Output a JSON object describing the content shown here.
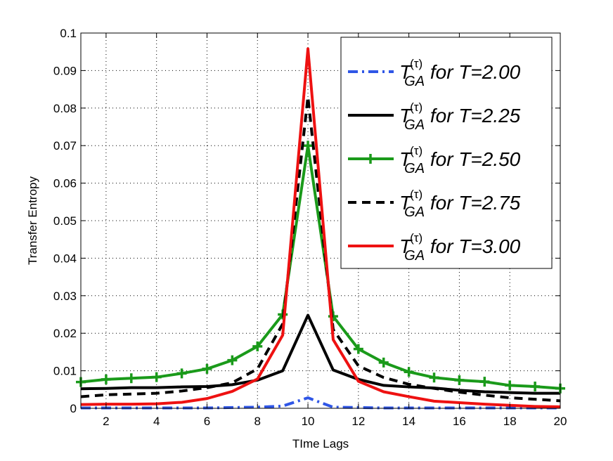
{
  "chart_data": {
    "type": "line",
    "title": "",
    "xlabel": "TIme Lags",
    "ylabel": "Transfer Entropy",
    "xlim": [
      1,
      20
    ],
    "ylim": [
      0,
      0.1
    ],
    "grid": true,
    "legend_position": "top-right",
    "x": [
      1,
      2,
      3,
      4,
      5,
      6,
      7,
      8,
      9,
      10,
      11,
      12,
      13,
      14,
      15,
      16,
      17,
      18,
      19,
      20
    ],
    "xticks": [
      "2",
      "4",
      "6",
      "8",
      "10",
      "12",
      "14",
      "16",
      "18",
      "20"
    ],
    "yticks": [
      "0",
      "0.01",
      "0.02",
      "0.03",
      "0.04",
      "0.05",
      "0.06",
      "0.07",
      "0.08",
      "0.09",
      "0.1"
    ],
    "series": [
      {
        "name": "T_GA^(τ) for T=2.00",
        "legend_main": "T",
        "legend_sup": "(τ)",
        "legend_sub": "GA",
        "legend_tail": " for T=2.00",
        "color": "#2f56e6",
        "style": "dashdot",
        "marker": "none",
        "values": [
          0.0001,
          0.0001,
          0.0001,
          0.0001,
          0.0001,
          0.0001,
          0.0002,
          0.0003,
          0.0006,
          0.0028,
          0.0003,
          0.0002,
          0.0001,
          0.0001,
          0.0001,
          0.0001,
          0.0001,
          0.0001,
          0.0001,
          0.0001
        ]
      },
      {
        "name": "T_GA^(τ) for T=2.25",
        "legend_main": "T",
        "legend_sup": "(τ)",
        "legend_sub": "GA",
        "legend_tail": " for T=2.25",
        "color": "#000000",
        "style": "solid",
        "marker": "none",
        "values": [
          0.0052,
          0.0053,
          0.0055,
          0.0055,
          0.0057,
          0.0058,
          0.0063,
          0.0075,
          0.01,
          0.0248,
          0.0102,
          0.0077,
          0.0061,
          0.0057,
          0.0054,
          0.0048,
          0.0044,
          0.0042,
          0.004,
          0.004
        ]
      },
      {
        "name": "T_GA^(τ) for T=2.50",
        "legend_main": "T",
        "legend_sup": "(τ)",
        "legend_sub": "GA",
        "legend_tail": " for T=2.50",
        "color": "#1a9a1a",
        "style": "solid",
        "marker": "plus",
        "values": [
          0.007,
          0.0077,
          0.008,
          0.0083,
          0.0093,
          0.0105,
          0.0128,
          0.0165,
          0.025,
          0.07,
          0.0245,
          0.0158,
          0.0122,
          0.0097,
          0.0082,
          0.0075,
          0.0071,
          0.0061,
          0.0058,
          0.0053
        ]
      },
      {
        "name": "T_GA^(τ) for T=2.75",
        "legend_main": "T",
        "legend_sup": "(τ)",
        "legend_sub": "GA",
        "legend_tail": " for T=2.75",
        "color": "#000000",
        "style": "dashed",
        "marker": "none",
        "values": [
          0.0031,
          0.0036,
          0.0038,
          0.004,
          0.0046,
          0.0055,
          0.0068,
          0.0105,
          0.0225,
          0.083,
          0.021,
          0.0113,
          0.0082,
          0.0064,
          0.0053,
          0.0043,
          0.0035,
          0.0028,
          0.0024,
          0.002
        ]
      },
      {
        "name": "T_GA^(τ) for T=3.00",
        "legend_main": "T",
        "legend_sup": "(τ)",
        "legend_sub": "GA",
        "legend_tail": " for T=3.00",
        "color": "#ee1111",
        "style": "solid",
        "marker": "none",
        "values": [
          0.001,
          0.0011,
          0.0011,
          0.0012,
          0.0016,
          0.0026,
          0.0045,
          0.0078,
          0.0195,
          0.0958,
          0.0183,
          0.0072,
          0.0044,
          0.0031,
          0.0019,
          0.0015,
          0.0011,
          0.0008,
          0.0005,
          0.0004
        ]
      }
    ]
  }
}
